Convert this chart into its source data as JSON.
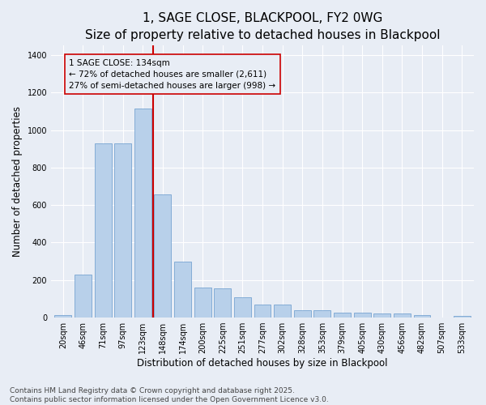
{
  "title": "1, SAGE CLOSE, BLACKPOOL, FY2 0WG",
  "subtitle": "Size of property relative to detached houses in Blackpool",
  "xlabel": "Distribution of detached houses by size in Blackpool",
  "ylabel": "Number of detached properties",
  "categories": [
    "20sqm",
    "46sqm",
    "71sqm",
    "97sqm",
    "123sqm",
    "148sqm",
    "174sqm",
    "200sqm",
    "225sqm",
    "251sqm",
    "277sqm",
    "302sqm",
    "328sqm",
    "353sqm",
    "379sqm",
    "405sqm",
    "430sqm",
    "456sqm",
    "482sqm",
    "507sqm",
    "533sqm"
  ],
  "values": [
    15,
    230,
    930,
    930,
    1115,
    655,
    300,
    160,
    155,
    108,
    68,
    68,
    38,
    38,
    25,
    25,
    22,
    22,
    15,
    0,
    10
  ],
  "bar_color": "#b8d0ea",
  "bar_edge_color": "#6699cc",
  "background_color": "#e8edf5",
  "grid_color": "#ffffff",
  "vline_color": "#cc0000",
  "vline_x": 4.5,
  "annotation_text": "1 SAGE CLOSE: 134sqm\n← 72% of detached houses are smaller (2,611)\n27% of semi-detached houses are larger (998) →",
  "annotation_box_color": "#cc0000",
  "footer_text": "Contains HM Land Registry data © Crown copyright and database right 2025.\nContains public sector information licensed under the Open Government Licence v3.0.",
  "ylim": [
    0,
    1450
  ],
  "title_fontsize": 11,
  "xlabel_fontsize": 8.5,
  "ylabel_fontsize": 8.5,
  "tick_fontsize": 7,
  "annotation_fontsize": 7.5,
  "footer_fontsize": 6.5
}
